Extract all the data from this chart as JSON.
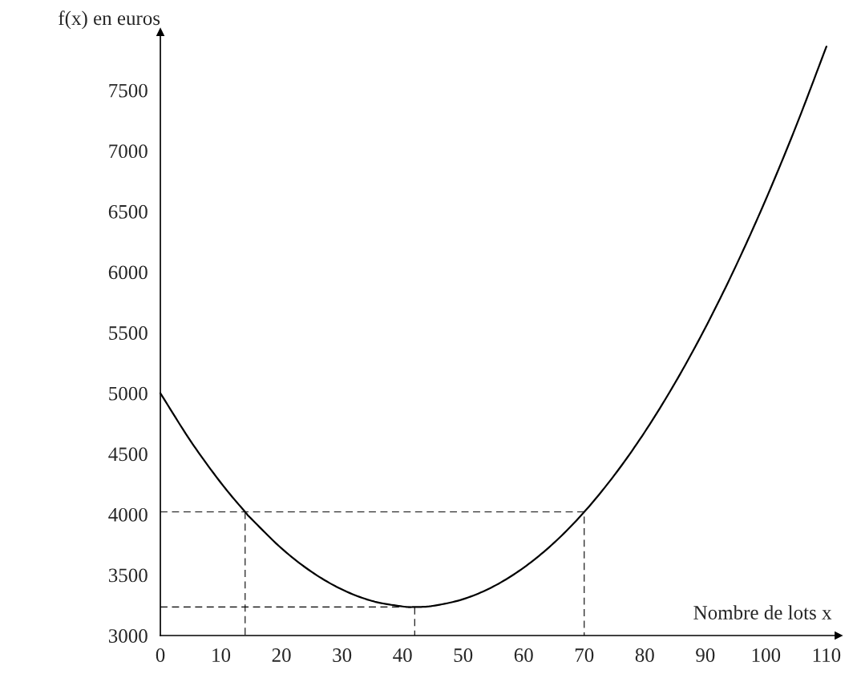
{
  "chart_data": {
    "type": "line",
    "xlabel": "Nombre de lots x",
    "ylabel": "f(x) en euros",
    "xlim": [
      0,
      112
    ],
    "ylim": [
      3000,
      7980
    ],
    "xticks": [
      0,
      10,
      20,
      30,
      40,
      50,
      60,
      70,
      80,
      90,
      100,
      110
    ],
    "yticks": [
      3000,
      3500,
      4000,
      4500,
      5000,
      5500,
      6000,
      6500,
      7000,
      7500
    ],
    "grid": false,
    "legend": false,
    "marker": "none",
    "series": [
      {
        "color": "#000000",
        "line_style": "solid",
        "x": [
          0,
          5,
          10,
          14,
          15,
          20,
          25,
          30,
          35,
          40,
          42,
          45,
          50,
          55,
          60,
          65,
          70,
          75,
          80,
          85,
          90,
          95,
          100,
          105,
          110
        ],
        "values": [
          5000,
          4605,
          4260,
          4020,
          3965,
          3720,
          3525,
          3380,
          3285,
          3240,
          3236,
          3245,
          3300,
          3405,
          3560,
          3765,
          4020,
          4325,
          4680,
          5085,
          5540,
          6045,
          6600,
          7205,
          7860
        ]
      },
      {
        "color": "#000000",
        "line_style": "dashed",
        "x": [
          0,
          70,
          70
        ],
        "values": [
          4020,
          4020,
          3000
        ]
      },
      {
        "color": "#000000",
        "line_style": "dashed",
        "x": [
          14,
          14
        ],
        "values": [
          4020,
          3000
        ]
      },
      {
        "color": "#000000",
        "line_style": "dashed",
        "x": [
          0,
          42,
          42
        ],
        "values": [
          3236,
          3236,
          3000
        ]
      }
    ]
  }
}
